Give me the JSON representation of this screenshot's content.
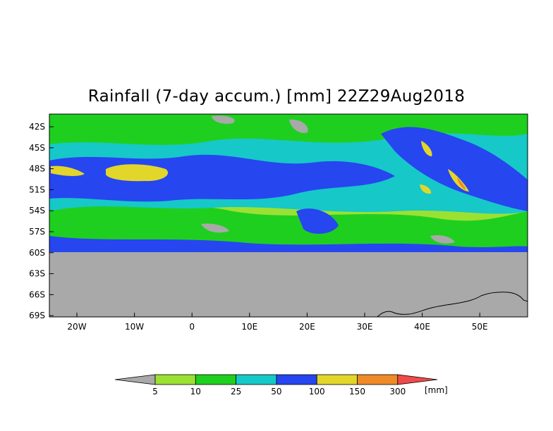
{
  "title": "Rainfall (7-day accum.) [mm] 22Z29Aug2018",
  "map": {
    "lat_labels": [
      "42S",
      "45S",
      "48S",
      "51S",
      "54S",
      "57S",
      "60S",
      "63S",
      "66S",
      "69S"
    ],
    "lon_labels": [
      "20W",
      "10W",
      "0",
      "10E",
      "20E",
      "30E",
      "40E",
      "50E"
    ],
    "land_color": "#a9a9a9",
    "lat_range": [
      -69.3,
      -40.6
    ],
    "lon_range": [
      -25,
      58
    ],
    "data_cutoff_lat": -60
  },
  "legend": {
    "unit": "[mm]",
    "ticks": [
      "5",
      "10",
      "25",
      "50",
      "100",
      "150",
      "300"
    ],
    "colors": [
      "#a9a9a9",
      "#9be133",
      "#1fcf1f",
      "#16c8c8",
      "#2646f0",
      "#e3d62a",
      "#ee8a28",
      "#f04a4a"
    ]
  },
  "colors": {
    "bg": "#ffffff",
    "frame": "#000000",
    "coast": "#000000"
  }
}
